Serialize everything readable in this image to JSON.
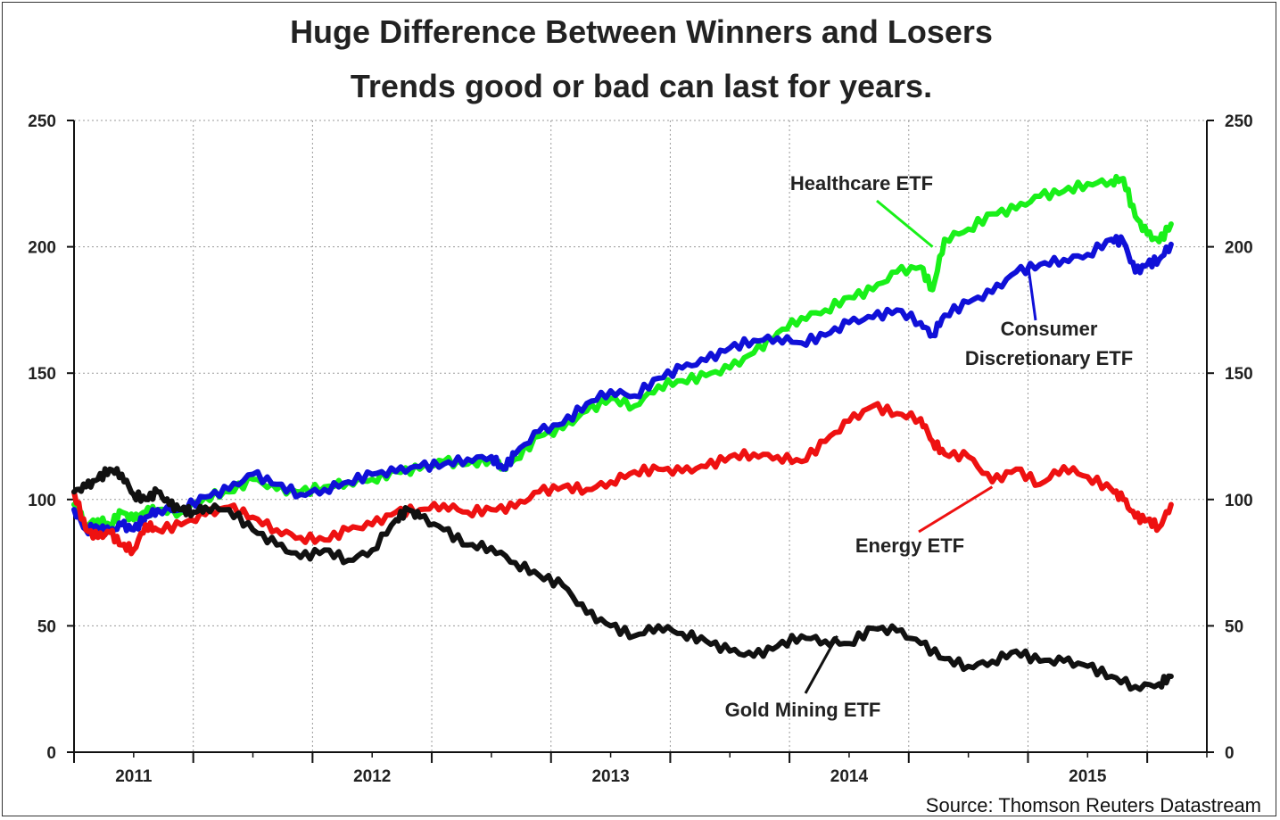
{
  "chart_data": {
    "type": "line",
    "title": "Huge Difference Between Winners and Losers",
    "subtitle": "Trends good or bad can last for years.",
    "source": "Source: Thomson Reuters Datastream",
    "xlabel": "",
    "ylabel": "",
    "ylim": [
      0,
      250
    ],
    "xlim": [
      2010.75,
      2015.5
    ],
    "grid": true,
    "y_ticks": [
      "0",
      "50",
      "100",
      "150",
      "200",
      "250"
    ],
    "x_tick_labels": [
      {
        "label": "2011",
        "x": 2011.0
      },
      {
        "label": "2012",
        "x": 2012.0
      },
      {
        "label": "2013",
        "x": 2013.0
      },
      {
        "label": "2014",
        "x": 2014.0
      },
      {
        "label": "2015",
        "x": 2015.0
      }
    ],
    "year_boundaries": [
      2010.75,
      2011.25,
      2011.75,
      2012.25,
      2012.75,
      2013.25,
      2013.75,
      2014.25,
      2014.75,
      2015.25
    ],
    "series": [
      {
        "name": "Healthcare ETF",
        "color": "#19f019",
        "points": [
          [
            2010.75,
            98
          ],
          [
            2010.8,
            90
          ],
          [
            2010.85,
            92
          ],
          [
            2010.9,
            90
          ],
          [
            2010.95,
            95
          ],
          [
            2011.0,
            92
          ],
          [
            2011.05,
            95
          ],
          [
            2011.1,
            96
          ],
          [
            2011.2,
            95
          ],
          [
            2011.3,
            101
          ],
          [
            2011.4,
            103
          ],
          [
            2011.5,
            108
          ],
          [
            2011.6,
            104
          ],
          [
            2011.7,
            103
          ],
          [
            2011.8,
            105
          ],
          [
            2011.9,
            107
          ],
          [
            2012.0,
            108
          ],
          [
            2012.1,
            111
          ],
          [
            2012.2,
            112
          ],
          [
            2012.3,
            115
          ],
          [
            2012.4,
            114
          ],
          [
            2012.5,
            116
          ],
          [
            2012.55,
            113
          ],
          [
            2012.6,
            116
          ],
          [
            2012.7,
            125
          ],
          [
            2012.8,
            128
          ],
          [
            2012.9,
            135
          ],
          [
            2013.0,
            140
          ],
          [
            2013.1,
            137
          ],
          [
            2013.2,
            145
          ],
          [
            2013.3,
            147
          ],
          [
            2013.4,
            149
          ],
          [
            2013.5,
            152
          ],
          [
            2013.6,
            158
          ],
          [
            2013.7,
            166
          ],
          [
            2013.8,
            172
          ],
          [
            2013.9,
            175
          ],
          [
            2014.0,
            180
          ],
          [
            2014.1,
            183
          ],
          [
            2014.2,
            190
          ],
          [
            2014.3,
            192
          ],
          [
            2014.35,
            183
          ],
          [
            2014.4,
            203
          ],
          [
            2014.5,
            207
          ],
          [
            2014.6,
            213
          ],
          [
            2014.7,
            215
          ],
          [
            2014.8,
            220
          ],
          [
            2014.9,
            222
          ],
          [
            2015.0,
            225
          ],
          [
            2015.1,
            226
          ],
          [
            2015.15,
            227
          ],
          [
            2015.2,
            212
          ],
          [
            2015.25,
            205
          ],
          [
            2015.3,
            202
          ],
          [
            2015.35,
            209
          ]
        ]
      },
      {
        "name": "Consumer Discretionary ETF",
        "color": "#1010d8",
        "points": [
          [
            2010.75,
            96
          ],
          [
            2010.8,
            88
          ],
          [
            2010.85,
            89
          ],
          [
            2010.9,
            87
          ],
          [
            2010.95,
            90
          ],
          [
            2011.0,
            88
          ],
          [
            2011.05,
            93
          ],
          [
            2011.1,
            96
          ],
          [
            2011.2,
            96
          ],
          [
            2011.3,
            101
          ],
          [
            2011.4,
            104
          ],
          [
            2011.5,
            110
          ],
          [
            2011.6,
            106
          ],
          [
            2011.7,
            102
          ],
          [
            2011.8,
            104
          ],
          [
            2011.9,
            107
          ],
          [
            2012.0,
            110
          ],
          [
            2012.1,
            111
          ],
          [
            2012.2,
            113
          ],
          [
            2012.3,
            114
          ],
          [
            2012.4,
            116
          ],
          [
            2012.5,
            117
          ],
          [
            2012.55,
            112
          ],
          [
            2012.6,
            118
          ],
          [
            2012.7,
            127
          ],
          [
            2012.8,
            130
          ],
          [
            2012.9,
            138
          ],
          [
            2013.0,
            143
          ],
          [
            2013.1,
            141
          ],
          [
            2013.2,
            148
          ],
          [
            2013.3,
            152
          ],
          [
            2013.4,
            155
          ],
          [
            2013.5,
            160
          ],
          [
            2013.6,
            163
          ],
          [
            2013.7,
            164
          ],
          [
            2013.8,
            162
          ],
          [
            2013.9,
            165
          ],
          [
            2014.0,
            170
          ],
          [
            2014.1,
            172
          ],
          [
            2014.2,
            175
          ],
          [
            2014.3,
            170
          ],
          [
            2014.35,
            165
          ],
          [
            2014.4,
            173
          ],
          [
            2014.5,
            178
          ],
          [
            2014.6,
            182
          ],
          [
            2014.7,
            190
          ],
          [
            2014.8,
            193
          ],
          [
            2014.9,
            195
          ],
          [
            2015.0,
            197
          ],
          [
            2015.1,
            203
          ],
          [
            2015.15,
            202
          ],
          [
            2015.2,
            190
          ],
          [
            2015.25,
            193
          ],
          [
            2015.3,
            195
          ],
          [
            2015.35,
            201
          ]
        ]
      },
      {
        "name": "Energy ETF",
        "color": "#ee1111",
        "points": [
          [
            2010.75,
            103
          ],
          [
            2010.8,
            88
          ],
          [
            2010.85,
            85
          ],
          [
            2010.9,
            87
          ],
          [
            2010.95,
            82
          ],
          [
            2011.0,
            80
          ],
          [
            2011.05,
            90
          ],
          [
            2011.1,
            88
          ],
          [
            2011.2,
            90
          ],
          [
            2011.3,
            94
          ],
          [
            2011.4,
            97
          ],
          [
            2011.5,
            93
          ],
          [
            2011.6,
            88
          ],
          [
            2011.7,
            85
          ],
          [
            2011.8,
            84
          ],
          [
            2011.9,
            88
          ],
          [
            2012.0,
            90
          ],
          [
            2012.1,
            95
          ],
          [
            2012.2,
            96
          ],
          [
            2012.3,
            98
          ],
          [
            2012.4,
            95
          ],
          [
            2012.5,
            96
          ],
          [
            2012.6,
            97
          ],
          [
            2012.7,
            103
          ],
          [
            2012.8,
            105
          ],
          [
            2012.9,
            104
          ],
          [
            2013.0,
            107
          ],
          [
            2013.1,
            111
          ],
          [
            2013.2,
            112
          ],
          [
            2013.3,
            111
          ],
          [
            2013.4,
            113
          ],
          [
            2013.5,
            117
          ],
          [
            2013.6,
            118
          ],
          [
            2013.7,
            117
          ],
          [
            2013.8,
            115
          ],
          [
            2013.9,
            123
          ],
          [
            2014.0,
            131
          ],
          [
            2014.1,
            137
          ],
          [
            2014.2,
            134
          ],
          [
            2014.3,
            132
          ],
          [
            2014.35,
            123
          ],
          [
            2014.4,
            118
          ],
          [
            2014.5,
            117
          ],
          [
            2014.6,
            107
          ],
          [
            2014.7,
            112
          ],
          [
            2014.8,
            106
          ],
          [
            2014.9,
            113
          ],
          [
            2015.0,
            109
          ],
          [
            2015.1,
            104
          ],
          [
            2015.15,
            100
          ],
          [
            2015.2,
            93
          ],
          [
            2015.25,
            92
          ],
          [
            2015.3,
            89
          ],
          [
            2015.35,
            98
          ]
        ]
      },
      {
        "name": "Gold Mining ETF",
        "color": "#111111",
        "points": [
          [
            2010.75,
            103
          ],
          [
            2010.8,
            105
          ],
          [
            2010.85,
            108
          ],
          [
            2010.9,
            112
          ],
          [
            2010.95,
            110
          ],
          [
            2011.0,
            102
          ],
          [
            2011.05,
            100
          ],
          [
            2011.1,
            103
          ],
          [
            2011.15,
            98
          ],
          [
            2011.2,
            96
          ],
          [
            2011.25,
            95
          ],
          [
            2011.3,
            97
          ],
          [
            2011.4,
            96
          ],
          [
            2011.5,
            88
          ],
          [
            2011.6,
            82
          ],
          [
            2011.7,
            77
          ],
          [
            2011.8,
            80
          ],
          [
            2011.9,
            76
          ],
          [
            2012.0,
            80
          ],
          [
            2012.1,
            92
          ],
          [
            2012.15,
            96
          ],
          [
            2012.2,
            93
          ],
          [
            2012.3,
            88
          ],
          [
            2012.4,
            82
          ],
          [
            2012.5,
            81
          ],
          [
            2012.6,
            75
          ],
          [
            2012.7,
            70
          ],
          [
            2012.8,
            66
          ],
          [
            2012.9,
            55
          ],
          [
            2013.0,
            50
          ],
          [
            2013.1,
            46
          ],
          [
            2013.2,
            50
          ],
          [
            2013.3,
            47
          ],
          [
            2013.4,
            44
          ],
          [
            2013.5,
            40
          ],
          [
            2013.6,
            38
          ],
          [
            2013.7,
            42
          ],
          [
            2013.8,
            46
          ],
          [
            2013.9,
            44
          ],
          [
            2014.0,
            43
          ],
          [
            2014.1,
            49
          ],
          [
            2014.2,
            48
          ],
          [
            2014.3,
            43
          ],
          [
            2014.4,
            37
          ],
          [
            2014.5,
            34
          ],
          [
            2014.6,
            36
          ],
          [
            2014.7,
            40
          ],
          [
            2014.8,
            36
          ],
          [
            2014.9,
            36
          ],
          [
            2015.0,
            34
          ],
          [
            2015.1,
            30
          ],
          [
            2015.2,
            26
          ],
          [
            2015.3,
            27
          ],
          [
            2015.35,
            30
          ]
        ]
      }
    ],
    "annotations": [
      {
        "lines": [
          "Healthcare ETF"
        ],
        "series": "Healthcare ETF",
        "point": [
          2014.35,
          200
        ]
      },
      {
        "lines": [
          "Consumer",
          "Discretionary ETF"
        ],
        "series": "Consumer Discretionary ETF",
        "point": [
          2014.75,
          193
        ]
      },
      {
        "lines": [
          "Energy ETF"
        ],
        "series": "Energy ETF",
        "point": [
          2014.6,
          105
        ]
      },
      {
        "lines": [
          "Gold Mining ETF"
        ],
        "series": "Gold Mining ETF",
        "point": [
          2013.95,
          46
        ]
      }
    ]
  }
}
